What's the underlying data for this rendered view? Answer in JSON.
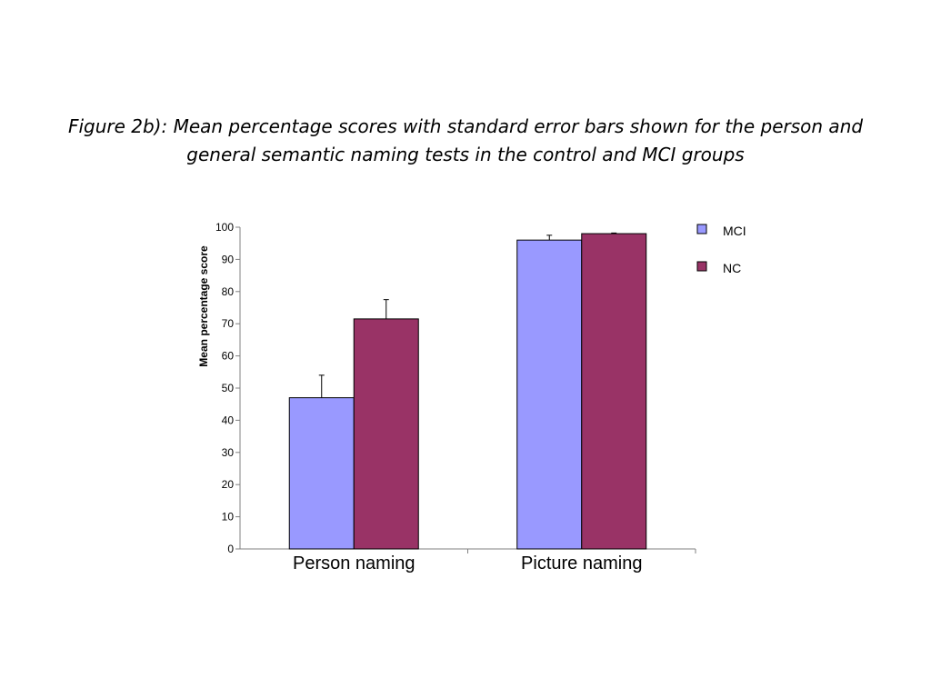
{
  "title_lines": [
    "Figure 2b): Mean percentage scores with standard error bars shown for the person and",
    "general semantic naming tests in the control and MCI groups"
  ],
  "chart_data": {
    "type": "bar",
    "categories": [
      "Person naming",
      "Picture naming"
    ],
    "series": [
      {
        "name": "MCI",
        "color": "#9999ff",
        "values": [
          47,
          96
        ],
        "errors": [
          7,
          1.5
        ]
      },
      {
        "name": "NC",
        "color": "#993366",
        "values": [
          71.5,
          98
        ],
        "errors": [
          6,
          0.2
        ]
      }
    ],
    "ylabel": "Mean percentage score",
    "ylim": [
      0,
      100
    ],
    "yticks": [
      0,
      10,
      20,
      30,
      40,
      50,
      60,
      70,
      80,
      90,
      100
    ],
    "grid": false,
    "legend": "top-right"
  }
}
